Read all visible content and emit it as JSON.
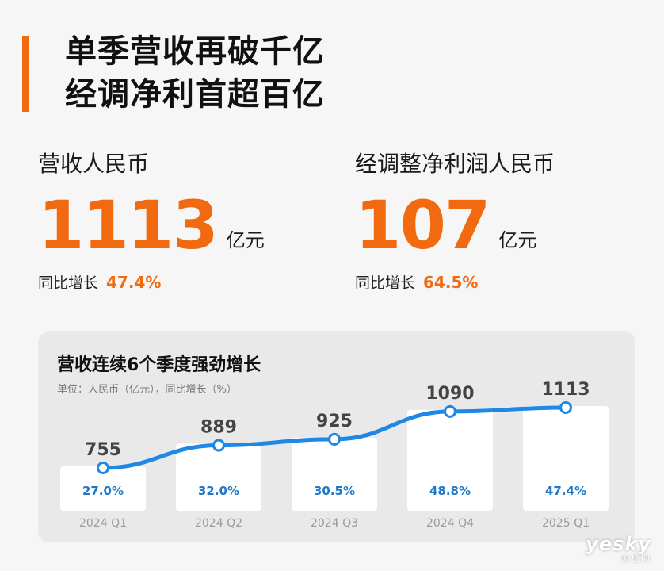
{
  "colors": {
    "accent": "#f26a10",
    "line": "#1e88e5",
    "point_stroke": "#1e88e5",
    "pct_text": "#1e78c8",
    "bar": "#ffffff",
    "axis_label": "#9a9a9a"
  },
  "headline": {
    "line1": "单季营收再破千亿",
    "line2": "经调净利首超百亿"
  },
  "metrics": {
    "revenue": {
      "label": "营收人民币",
      "value": "1113",
      "unit": "亿元",
      "yoy_label": "同比增长",
      "yoy_value": "47.4%"
    },
    "profit": {
      "label": "经调整净利润人民币",
      "value": "107",
      "unit": "亿元",
      "yoy_label": "同比增长",
      "yoy_value": "64.5%"
    }
  },
  "chart": {
    "title": "营收连续6个季度强劲增长",
    "subtitle": "单位：人民币（亿元），同比增长（%）"
  },
  "chart_data": {
    "type": "bar",
    "title": "营收连续6个季度强劲增长",
    "subtitle": "单位：人民币（亿元），同比增长（%）",
    "categories": [
      "2024 Q1",
      "2024 Q2",
      "2024 Q3",
      "2024 Q4",
      "2025 Q1"
    ],
    "series": [
      {
        "values": [
          755,
          889,
          925,
          1090,
          1113
        ]
      },
      {
        "values": [
          27.0,
          32.0,
          30.5,
          48.8,
          47.4
        ]
      }
    ],
    "value_labels": [
      "755",
      "889",
      "925",
      "1090",
      "1113"
    ],
    "growth_labels": [
      "27.0%",
      "32.0%",
      "30.5%",
      "48.8%",
      "47.4%"
    ],
    "legend": "none",
    "grid": false
  },
  "watermark": {
    "line1": "yesky",
    "line2": "天极网"
  }
}
